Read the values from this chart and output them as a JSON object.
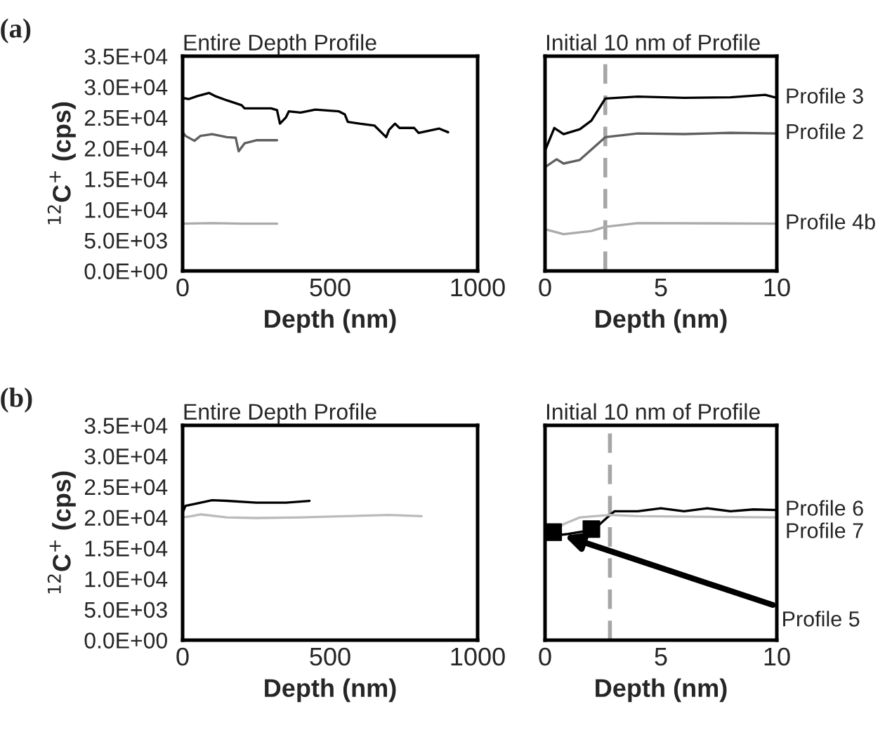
{
  "chart_data": [
    {
      "type": "line",
      "title": "Entire Depth Profile",
      "xlabel": "Depth (nm)",
      "ylabel": "$^{12}$C$^{+}$ (cps)",
      "annotations": [
        "(a)"
      ],
      "xlim": [
        0,
        1000
      ],
      "xticks": [
        0,
        500,
        1000
      ],
      "ylim": [
        0,
        35000
      ],
      "yticks": [
        {
          "value": 0,
          "label": "0.0E+00"
        },
        {
          "value": 5000,
          "label": "5.0E+03"
        },
        {
          "value": 10000,
          "label": "1.0E+04"
        },
        {
          "value": 15000,
          "label": "1.5E+04"
        },
        {
          "value": 20000,
          "label": "2.0E+04"
        },
        {
          "value": 25000,
          "label": "2.5E+04"
        },
        {
          "value": 30000,
          "label": "3.0E+04"
        },
        {
          "value": 35000,
          "label": "3.5E+04"
        }
      ],
      "line_style": "solid",
      "series": [
        {
          "color": "#000000",
          "x": [
            0,
            20,
            50,
            90,
            110,
            150,
            200,
            210,
            300,
            320,
            330,
            350,
            360,
            400,
            450,
            530,
            550,
            560,
            600,
            650,
            690,
            700,
            720,
            735,
            785,
            800,
            850,
            870,
            900
          ],
          "values": [
            28200,
            28000,
            28500,
            29000,
            28500,
            27800,
            27000,
            26500,
            26500,
            26200,
            24000,
            25000,
            26000,
            25800,
            26300,
            26000,
            25500,
            24300,
            24000,
            23700,
            21800,
            23000,
            24000,
            23300,
            23300,
            22500,
            23000,
            23200,
            22600
          ]
        },
        {
          "color": "#5f5f5f",
          "x": [
            0,
            10,
            40,
            60,
            100,
            150,
            180,
            190,
            210,
            250,
            320
          ],
          "values": [
            22600,
            22000,
            21200,
            22000,
            22300,
            21800,
            21700,
            19500,
            20800,
            21300,
            21300
          ]
        },
        {
          "color": "#aaaaaa",
          "x": [
            0,
            100,
            200,
            320
          ],
          "values": [
            7700,
            7800,
            7700,
            7700
          ]
        }
      ]
    },
    {
      "type": "line",
      "title": "Initial 10 nm of Profile",
      "xlabel": "Depth (nm)",
      "tick_labels": "x",
      "xlim": [
        0,
        10
      ],
      "xticks": [
        0,
        5,
        10
      ],
      "ylim": [
        0,
        35000
      ],
      "line_style": "solid",
      "ref_lines": [
        {
          "axis": "x",
          "value": 2.6,
          "color": "#a6a6a6",
          "line_style": "dashed"
        }
      ],
      "series": [
        {
          "name": "Profile 3",
          "color": "#000000",
          "x": [
            0,
            0.4,
            0.8,
            1.5,
            2,
            2.6,
            4,
            6,
            8,
            9.5,
            10
          ],
          "values": [
            19600,
            23300,
            22300,
            23100,
            24500,
            28100,
            28400,
            28200,
            28300,
            28700,
            28200
          ]
        },
        {
          "name": "Profile 2",
          "color": "#5f5f5f",
          "x": [
            0,
            0.5,
            0.8,
            1.5,
            2.6,
            4,
            6,
            8,
            10
          ],
          "values": [
            16900,
            18200,
            17500,
            18100,
            21800,
            22400,
            22300,
            22500,
            22400
          ]
        },
        {
          "name": "Profile 4b",
          "color": "#aaaaaa",
          "x": [
            0,
            0.8,
            2,
            2.6,
            4,
            10
          ],
          "values": [
            6800,
            6000,
            6500,
            7200,
            7800,
            7700
          ]
        }
      ]
    },
    {
      "type": "line",
      "title": "Entire Depth Profile",
      "xlabel": "Depth (nm)",
      "ylabel": "$^{12}$C$^{+}$ (cps)",
      "annotations": [
        "(b)"
      ],
      "xlim": [
        0,
        1000
      ],
      "xticks": [
        0,
        500,
        1000
      ],
      "ylim": [
        0,
        35000
      ],
      "yticks": [
        {
          "value": 0,
          "label": "0.0E+00"
        },
        {
          "value": 5000,
          "label": "5.0E+03"
        },
        {
          "value": 10000,
          "label": "1.0E+04"
        },
        {
          "value": 15000,
          "label": "1.5E+04"
        },
        {
          "value": 20000,
          "label": "2.0E+04"
        },
        {
          "value": 25000,
          "label": "2.5E+04"
        },
        {
          "value": 30000,
          "label": "3.0E+04"
        },
        {
          "value": 35000,
          "label": "3.5E+04"
        }
      ],
      "line_style": "solid",
      "series": [
        {
          "color": "#000000",
          "x": [
            0,
            10,
            50,
            100,
            150,
            250,
            350,
            430
          ],
          "values": [
            20800,
            21900,
            22300,
            22800,
            22700,
            22400,
            22400,
            22700
          ]
        },
        {
          "color": "#bbbbbb",
          "x": [
            0,
            30,
            60,
            150,
            250,
            400,
            550,
            700,
            810
          ],
          "values": [
            20000,
            20200,
            20500,
            20000,
            19900,
            20000,
            20200,
            20400,
            20200
          ]
        }
      ]
    },
    {
      "type": "line",
      "title": "Initial 10 nm of Profile",
      "xlabel": "Depth (nm)",
      "tick_labels": "x",
      "xlim": [
        0,
        10
      ],
      "xticks": [
        0,
        5,
        10
      ],
      "ylim": [
        0,
        35000
      ],
      "line_style": "solid",
      "ref_lines": [
        {
          "axis": "x",
          "value": 2.8,
          "color": "#a6a6a6",
          "line_style": "dashed"
        }
      ],
      "series": [
        {
          "name": "Profile 6",
          "color": "#000000",
          "x": [
            0.3,
            1,
            2.1,
            2.8,
            3,
            4,
            5,
            6,
            7,
            8,
            9,
            10
          ],
          "values": [
            17000,
            17300,
            18000,
            20400,
            21000,
            21000,
            21500,
            21000,
            21500,
            21000,
            21300,
            21200
          ]
        },
        {
          "name": "Profile 7",
          "color": "#bbbbbb",
          "x": [
            0.3,
            0.8,
            1.5,
            2.8,
            4,
            10
          ],
          "values": [
            17700,
            18900,
            20000,
            20400,
            20200,
            20000
          ]
        },
        {
          "name": "Profile 5",
          "type": "scatter",
          "marker": "square",
          "color": "#000000",
          "x": [
            0.35,
            2.0
          ],
          "values": [
            17600,
            18100
          ]
        }
      ]
    }
  ]
}
